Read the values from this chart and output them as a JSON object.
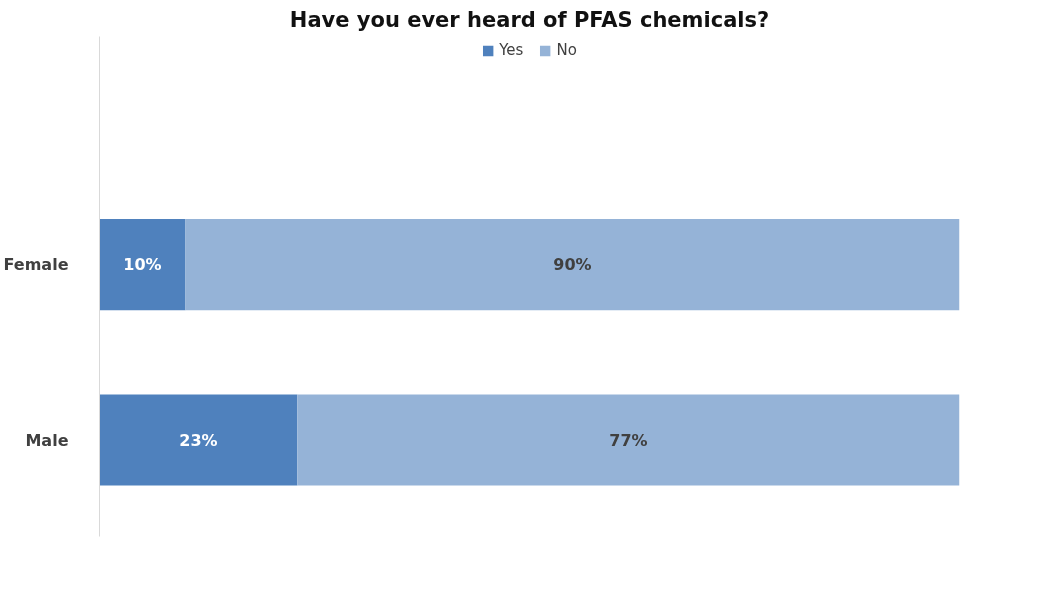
{
  "chart_data": {
    "type": "bar",
    "orientation": "horizontal",
    "stacked": true,
    "title": "Have you ever heard of PFAS chemicals?",
    "categories": [
      "Female",
      "Male"
    ],
    "series": [
      {
        "name": "Yes",
        "color": "#4f81bd",
        "values": [
          10,
          23
        ],
        "value_labels": [
          "10%",
          "23%"
        ]
      },
      {
        "name": "No",
        "color": "#95b3d7",
        "values": [
          90,
          77
        ],
        "value_labels": [
          "90%",
          "77%"
        ]
      }
    ],
    "legend": "top"
  }
}
